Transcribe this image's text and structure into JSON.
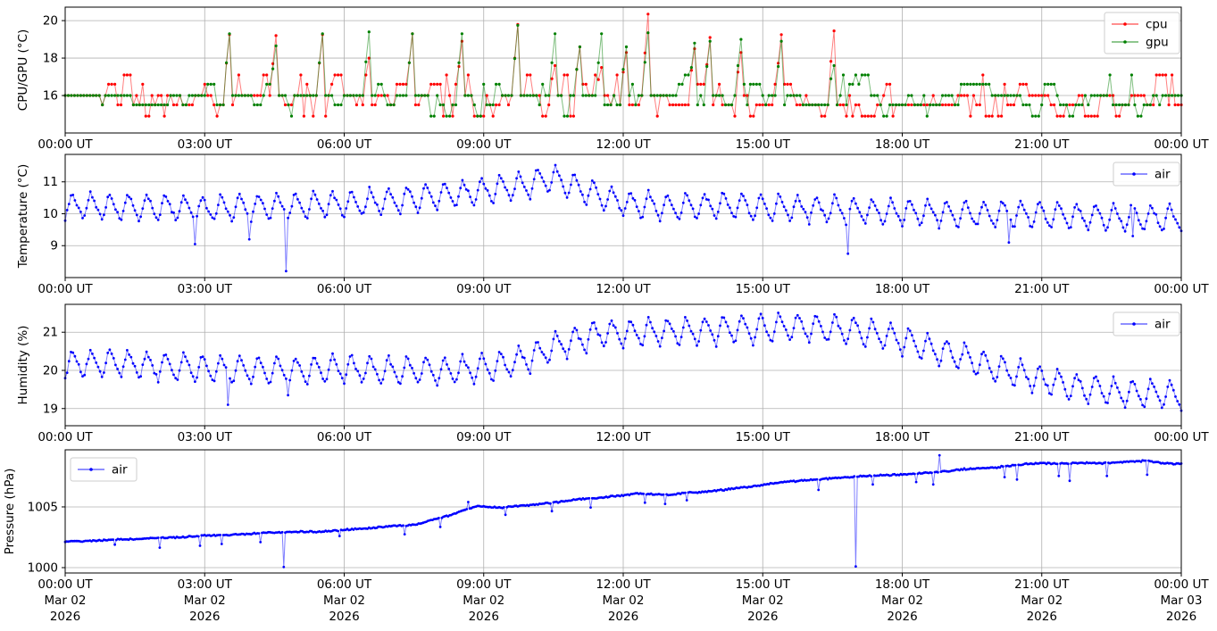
{
  "figure": {
    "background": "#ffffff"
  },
  "axes": {
    "x_unit": "hours",
    "x_range": [
      0,
      24
    ],
    "x_tick_hours": [
      0,
      3,
      6,
      9,
      12,
      15,
      18,
      21,
      24
    ],
    "x_tick_times": [
      "00:00 UT",
      "03:00 UT",
      "06:00 UT",
      "09:00 UT",
      "12:00 UT",
      "15:00 UT",
      "18:00 UT",
      "21:00 UT",
      "00:00 UT"
    ],
    "x_tick_dates": [
      "Mar 02",
      "Mar 02",
      "Mar 02",
      "Mar 02",
      "Mar 02",
      "Mar 02",
      "Mar 02",
      "Mar 02",
      "Mar 03"
    ],
    "x_tick_years": [
      "2026",
      "2026",
      "2026",
      "2026",
      "2026",
      "2026",
      "2026",
      "2026",
      "2026"
    ],
    "grid_color": "#b0b0b0",
    "spine_color": "#000000",
    "text_color": "#000000"
  },
  "chart_data": [
    {
      "id": "cpu-gpu-temperature",
      "type": "line",
      "ylabel": "CPU/GPU (°C)",
      "ylim": [
        14.0,
        20.72
      ],
      "yticks": [
        16,
        18,
        20
      ],
      "legend": {
        "loc": "upper-right"
      },
      "series": [
        {
          "name": "cpu",
          "color": "#ff0000",
          "model": {
            "kind": "quantized",
            "seed": 11,
            "step_min": 4,
            "hold_p": 0.35,
            "levels": [
              14.9,
              15.5,
              16.0,
              16.6,
              17.1
            ],
            "split_h": 13,
            "weights_early": [
              0.1,
              0.26,
              0.4,
              0.16,
              0.08
            ],
            "weights_late": [
              0.16,
              0.44,
              0.3,
              0.06,
              0.04
            ],
            "spikes": [
              [
                3.5,
                19.25
              ],
              [
                4.55,
                19.2
              ],
              [
                5.5,
                19.25
              ],
              [
                6.5,
                18.0
              ],
              [
                7.45,
                19.3
              ],
              [
                8.55,
                18.9
              ],
              [
                9.7,
                19.8
              ],
              [
                10.5,
                17.6
              ],
              [
                11.05,
                18.6
              ],
              [
                11.5,
                17.5
              ],
              [
                12.05,
                18.3
              ],
              [
                12.5,
                20.35
              ],
              [
                13.5,
                18.5
              ],
              [
                13.85,
                19.1
              ],
              [
                14.5,
                18.3
              ],
              [
                15.4,
                19.25
              ],
              [
                16.5,
                19.45
              ]
            ]
          }
        },
        {
          "name": "gpu",
          "color": "#008000",
          "model": {
            "kind": "quantized",
            "seed": 22,
            "step_min": 4,
            "hold_p": 0.5,
            "levels": [
              14.9,
              15.5,
              16.0,
              16.6,
              17.1
            ],
            "split_h": 13,
            "weights_early": [
              0.05,
              0.18,
              0.58,
              0.12,
              0.07
            ],
            "weights_late": [
              0.08,
              0.36,
              0.45,
              0.07,
              0.04
            ],
            "spikes": [
              [
                3.5,
                19.3
              ],
              [
                4.55,
                18.65
              ],
              [
                5.5,
                19.3
              ],
              [
                6.5,
                19.4
              ],
              [
                7.45,
                19.3
              ],
              [
                8.55,
                19.3
              ],
              [
                9.7,
                19.75
              ],
              [
                10.5,
                19.3
              ],
              [
                11.05,
                18.6
              ],
              [
                11.5,
                19.3
              ],
              [
                12.05,
                18.6
              ],
              [
                12.5,
                19.35
              ],
              [
                13.5,
                18.8
              ],
              [
                13.85,
                18.9
              ],
              [
                14.5,
                19.0
              ],
              [
                15.4,
                18.9
              ],
              [
                16.5,
                17.6
              ]
            ]
          }
        }
      ]
    },
    {
      "id": "air-temperature",
      "type": "line",
      "ylabel": "Temperature (°C)",
      "ylim": [
        8.0,
        11.86
      ],
      "yticks": [
        9,
        10,
        11
      ],
      "legend": {
        "loc": "upper-right"
      },
      "series": [
        {
          "name": "air",
          "color": "#0000ff",
          "model": {
            "kind": "sawtooth",
            "seed": 33,
            "step_min": 2.5,
            "period_h": 0.4,
            "rise_frac": 0.35,
            "amp": 0.45,
            "noise": 0.08,
            "trend": [
              [
                0,
                10.25
              ],
              [
                2,
                10.2
              ],
              [
                3,
                10.15
              ],
              [
                4,
                10.2
              ],
              [
                5,
                10.25
              ],
              [
                6,
                10.3
              ],
              [
                7,
                10.4
              ],
              [
                8,
                10.55
              ],
              [
                9,
                10.7
              ],
              [
                9.8,
                10.85
              ],
              [
                10.2,
                11.05
              ],
              [
                10.5,
                11.1
              ],
              [
                10.8,
                10.95
              ],
              [
                11.2,
                10.7
              ],
              [
                11.7,
                10.45
              ],
              [
                12.2,
                10.3
              ],
              [
                13,
                10.2
              ],
              [
                14,
                10.25
              ],
              [
                15,
                10.2
              ],
              [
                16,
                10.15
              ],
              [
                17,
                10.1
              ],
              [
                18,
                10.05
              ],
              [
                19,
                10.0
              ],
              [
                20,
                10.0
              ],
              [
                21,
                9.95
              ],
              [
                22,
                9.9
              ],
              [
                23,
                9.9
              ],
              [
                24,
                9.85
              ]
            ],
            "dips": [
              [
                2.8,
                9.05
              ],
              [
                3.95,
                9.2
              ],
              [
                4.75,
                8.2
              ],
              [
                16.85,
                8.75
              ],
              [
                20.3,
                9.1
              ],
              [
                22.95,
                9.3
              ]
            ]
          }
        }
      ]
    },
    {
      "id": "air-humidity",
      "type": "line",
      "ylabel": "Humidity (%)",
      "ylim": [
        18.55,
        21.73
      ],
      "yticks": [
        19,
        20,
        21
      ],
      "legend": {
        "loc": "upper-right"
      },
      "series": [
        {
          "name": "air",
          "color": "#0000ff",
          "model": {
            "kind": "sawtooth",
            "seed": 44,
            "step_min": 2.5,
            "period_h": 0.4,
            "rise_frac": 0.35,
            "amp": 0.4,
            "noise": 0.07,
            "trend": [
              [
                0,
                20.15
              ],
              [
                1,
                20.2
              ],
              [
                2,
                20.1
              ],
              [
                3,
                20.05
              ],
              [
                4,
                20.0
              ],
              [
                5,
                20.0
              ],
              [
                6,
                20.05
              ],
              [
                7,
                20.0
              ],
              [
                8,
                20.0
              ],
              [
                9,
                20.05
              ],
              [
                9.5,
                20.15
              ],
              [
                10,
                20.35
              ],
              [
                10.5,
                20.6
              ],
              [
                11,
                20.8
              ],
              [
                11.5,
                20.95
              ],
              [
                12,
                21.0
              ],
              [
                13,
                21.0
              ],
              [
                14,
                21.05
              ],
              [
                15,
                21.1
              ],
              [
                15.5,
                21.15
              ],
              [
                16,
                21.1
              ],
              [
                17,
                21.05
              ],
              [
                17.5,
                20.95
              ],
              [
                18,
                20.8
              ],
              [
                18.5,
                20.6
              ],
              [
                19,
                20.45
              ],
              [
                19.5,
                20.25
              ],
              [
                20,
                20.05
              ],
              [
                20.5,
                19.9
              ],
              [
                21,
                19.75
              ],
              [
                21.5,
                19.6
              ],
              [
                22,
                19.5
              ],
              [
                22.5,
                19.45
              ],
              [
                23,
                19.4
              ],
              [
                24,
                19.35
              ]
            ],
            "dips": [
              [
                3.5,
                19.1
              ],
              [
                4.8,
                19.35
              ]
            ]
          }
        }
      ]
    },
    {
      "id": "air-pressure",
      "type": "line",
      "ylabel": "Pressure (hPa)",
      "ylim": [
        999.56,
        1009.7
      ],
      "yticks": [
        1000,
        1005
      ],
      "legend": {
        "loc": "upper-left"
      },
      "series": [
        {
          "name": "air",
          "color": "#0000ff",
          "model": {
            "kind": "trend",
            "seed": 55,
            "step_min": 2,
            "noise": 0.07,
            "trend": [
              [
                0,
                1002.15
              ],
              [
                0.5,
                1002.2
              ],
              [
                1,
                1002.3
              ],
              [
                1.5,
                1002.35
              ],
              [
                2,
                1002.45
              ],
              [
                2.5,
                1002.5
              ],
              [
                3,
                1002.65
              ],
              [
                3.5,
                1002.7
              ],
              [
                4,
                1002.8
              ],
              [
                4.5,
                1002.9
              ],
              [
                5,
                1002.95
              ],
              [
                5.5,
                1002.95
              ],
              [
                6,
                1003.1
              ],
              [
                6.5,
                1003.25
              ],
              [
                7,
                1003.4
              ],
              [
                7.3,
                1003.45
              ],
              [
                7.6,
                1003.6
              ],
              [
                8,
                1004.05
              ],
              [
                8.3,
                1004.35
              ],
              [
                8.6,
                1004.75
              ],
              [
                8.85,
                1005.05
              ],
              [
                9.1,
                1005.0
              ],
              [
                9.4,
                1004.95
              ],
              [
                9.7,
                1005.05
              ],
              [
                10,
                1005.15
              ],
              [
                10.5,
                1005.35
              ],
              [
                11,
                1005.6
              ],
              [
                11.5,
                1005.75
              ],
              [
                12,
                1005.95
              ],
              [
                12.3,
                1006.1
              ],
              [
                12.6,
                1006.05
              ],
              [
                13,
                1006.0
              ],
              [
                13.3,
                1006.15
              ],
              [
                13.6,
                1006.2
              ],
              [
                14,
                1006.35
              ],
              [
                14.5,
                1006.55
              ],
              [
                15,
                1006.8
              ],
              [
                15.3,
                1007.0
              ],
              [
                15.6,
                1007.1
              ],
              [
                16,
                1007.2
              ],
              [
                16.5,
                1007.35
              ],
              [
                17,
                1007.5
              ],
              [
                17.5,
                1007.6
              ],
              [
                18,
                1007.65
              ],
              [
                18.5,
                1007.8
              ],
              [
                19,
                1007.95
              ],
              [
                19.3,
                1008.1
              ],
              [
                19.6,
                1008.15
              ],
              [
                20,
                1008.25
              ],
              [
                20.3,
                1008.4
              ],
              [
                20.7,
                1008.55
              ],
              [
                21,
                1008.6
              ],
              [
                21.3,
                1008.55
              ],
              [
                21.7,
                1008.6
              ],
              [
                22,
                1008.65
              ],
              [
                22.3,
                1008.6
              ],
              [
                22.7,
                1008.7
              ],
              [
                23,
                1008.75
              ],
              [
                23.3,
                1008.8
              ],
              [
                23.6,
                1008.6
              ],
              [
                24,
                1008.55
              ]
            ],
            "dips": [
              [
                1.05,
                1001.9
              ],
              [
                2.05,
                1001.65
              ],
              [
                2.9,
                1001.8
              ],
              [
                3.35,
                1001.95
              ],
              [
                4.2,
                1002.1
              ],
              [
                4.7,
                1000.05
              ],
              [
                5.9,
                1002.6
              ],
              [
                7.3,
                1002.75
              ],
              [
                8.05,
                1003.35
              ],
              [
                9.45,
                1004.35
              ],
              [
                10.45,
                1004.65
              ],
              [
                11.3,
                1004.95
              ],
              [
                12.45,
                1005.35
              ],
              [
                12.9,
                1005.25
              ],
              [
                13.35,
                1005.55
              ],
              [
                16.2,
                1006.4
              ],
              [
                17.0,
                1000.1
              ],
              [
                17.35,
                1006.85
              ],
              [
                18.3,
                1007.05
              ],
              [
                18.65,
                1006.85
              ],
              [
                20.2,
                1007.45
              ],
              [
                20.45,
                1007.25
              ],
              [
                21.35,
                1007.55
              ],
              [
                21.6,
                1007.15
              ],
              [
                22.4,
                1007.55
              ],
              [
                23.25,
                1007.65
              ]
            ],
            "spikes_up": [
              [
                8.65,
                1005.4
              ],
              [
                18.8,
                1009.25
              ]
            ]
          }
        }
      ]
    }
  ]
}
